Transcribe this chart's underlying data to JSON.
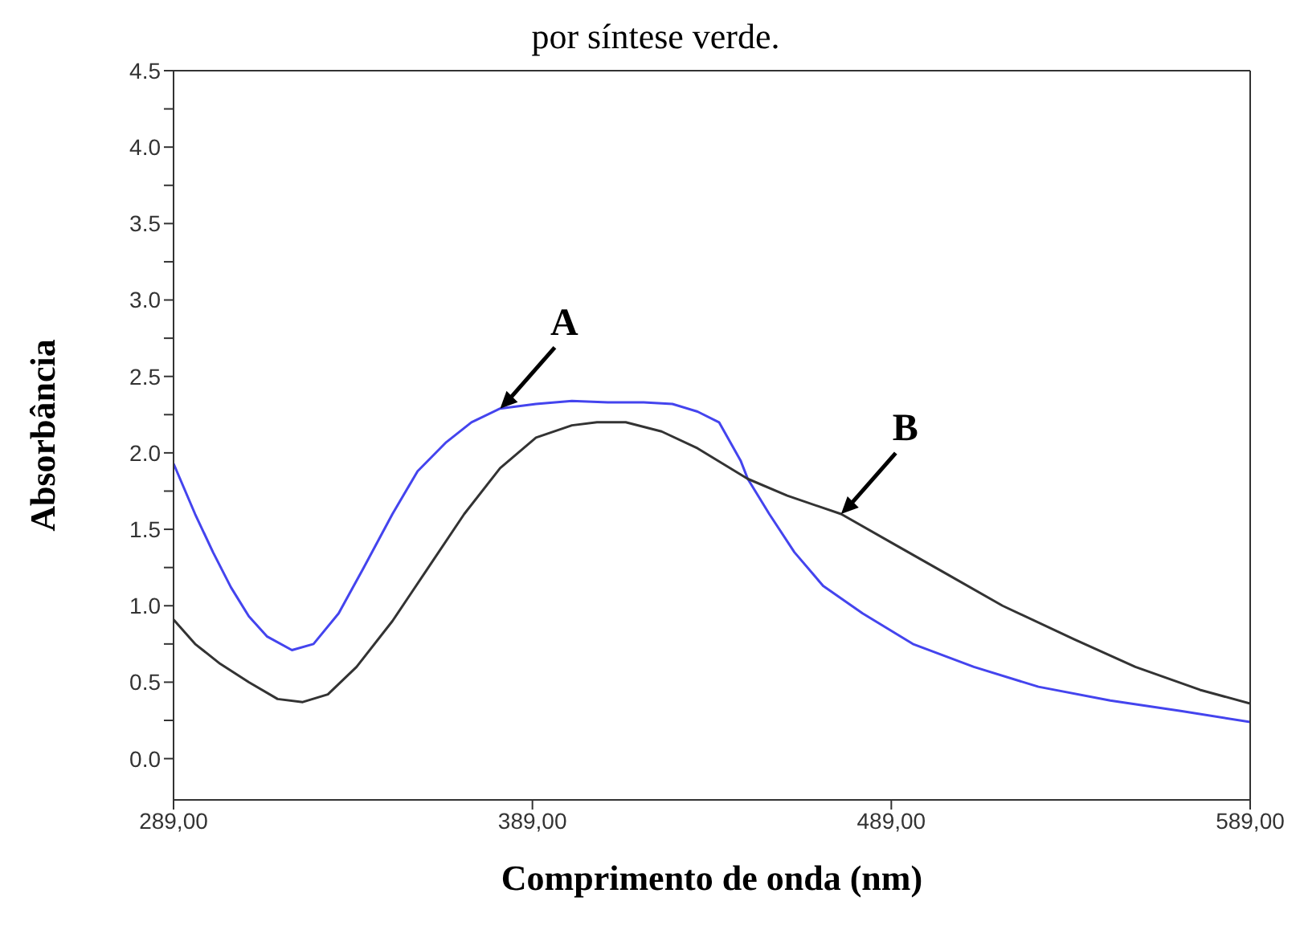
{
  "chart_data": {
    "type": "line",
    "title": "por síntese verde.",
    "xlabel": "Comprimento de onda (nm)",
    "ylabel": "Absorbância",
    "xlim": [
      289,
      589
    ],
    "xticks": [
      {
        "value": 289,
        "label": "289,00"
      },
      {
        "value": 389,
        "label": "389,00"
      },
      {
        "value": 489,
        "label": "489,00"
      },
      {
        "value": 589,
        "label": "589,00"
      }
    ],
    "ylim": [
      -0.27,
      4.5
    ],
    "yticks": [
      {
        "value": 0,
        "label": "0.0"
      },
      {
        "value": 0.25,
        "label": null
      },
      {
        "value": 0.5,
        "label": "0.5"
      },
      {
        "value": 0.75,
        "label": null
      },
      {
        "value": 1,
        "label": "1.0"
      },
      {
        "value": 1.25,
        "label": null
      },
      {
        "value": 1.5,
        "label": "1.5"
      },
      {
        "value": 1.75,
        "label": null
      },
      {
        "value": 2,
        "label": "2.0"
      },
      {
        "value": 2.25,
        "label": null
      },
      {
        "value": 2.5,
        "label": "2.5"
      },
      {
        "value": 2.75,
        "label": null
      },
      {
        "value": 3,
        "label": "3.0"
      },
      {
        "value": 3.25,
        "label": null
      },
      {
        "value": 3.5,
        "label": "3.5"
      },
      {
        "value": 3.75,
        "label": null
      },
      {
        "value": 4,
        "label": "4.0"
      },
      {
        "value": 4.25,
        "label": null
      },
      {
        "value": 4.5,
        "label": "4.5"
      }
    ],
    "marker": "none",
    "line_style": "solid",
    "annotations": [
      {
        "text": "A",
        "x": 380,
        "y": 2.29
      },
      {
        "text": "B",
        "x": 475,
        "y": 1.6
      }
    ],
    "series": [
      {
        "color": "#4444ee",
        "x": [
          289,
          295,
          300,
          305,
          310,
          315,
          322,
          328,
          335,
          342,
          350,
          357,
          365,
          372,
          380,
          390,
          400,
          410,
          420,
          428,
          435,
          441,
          447,
          449,
          455,
          462,
          470,
          481,
          495,
          512,
          530,
          550,
          570,
          589
        ],
        "values": [
          1.93,
          1.6,
          1.35,
          1.12,
          0.93,
          0.8,
          0.71,
          0.75,
          0.95,
          1.25,
          1.6,
          1.88,
          2.07,
          2.2,
          2.29,
          2.32,
          2.34,
          2.33,
          2.33,
          2.32,
          2.27,
          2.2,
          1.95,
          1.83,
          1.6,
          1.35,
          1.13,
          0.95,
          0.75,
          0.6,
          0.47,
          0.38,
          0.31,
          0.24
        ]
      },
      {
        "color": "#333333",
        "x": [
          289,
          295,
          302,
          310,
          318,
          325,
          332,
          340,
          350,
          360,
          370,
          380,
          390,
          400,
          407,
          415,
          425,
          435,
          449,
          460,
          475,
          490,
          505,
          520,
          540,
          557,
          575,
          589
        ],
        "values": [
          0.91,
          0.75,
          0.62,
          0.5,
          0.39,
          0.37,
          0.42,
          0.6,
          0.9,
          1.25,
          1.6,
          1.9,
          2.1,
          2.18,
          2.2,
          2.2,
          2.14,
          2.03,
          1.83,
          1.72,
          1.6,
          1.4,
          1.2,
          1.0,
          0.78,
          0.6,
          0.45,
          0.36
        ]
      }
    ]
  }
}
